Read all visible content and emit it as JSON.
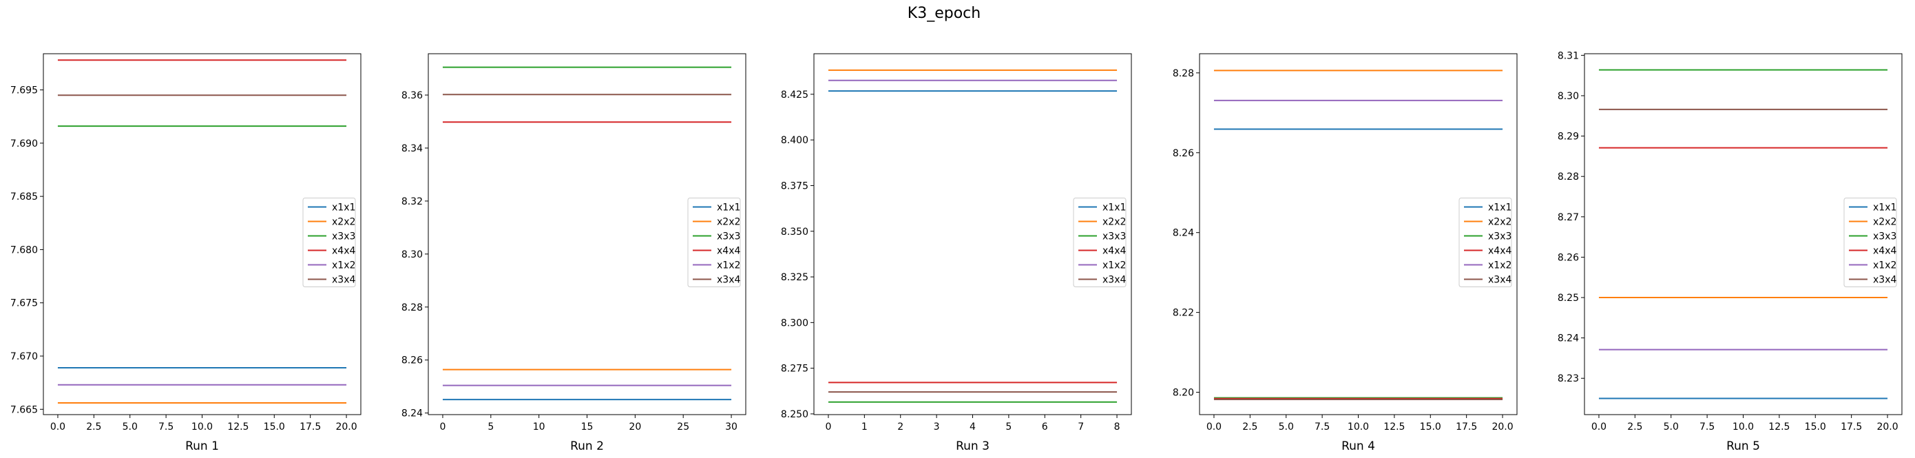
{
  "title": "K3_epoch",
  "colors": {
    "x1x1": "#1f77b4",
    "x2x2": "#ff7f0e",
    "x3x3": "#2ca02c",
    "x4x4": "#d62728",
    "x1x2": "#9467bd",
    "x3x4": "#8c564b"
  },
  "chart_data": [
    {
      "type": "line",
      "xlabel": "Run 1",
      "xlim": [
        -1,
        21
      ],
      "ylim": [
        7.6645,
        7.6984
      ],
      "xticks": [
        0,
        2.5,
        5,
        7.5,
        10,
        12.5,
        15,
        17.5,
        20
      ],
      "xtick_labels": [
        "0.0",
        "2.5",
        "5.0",
        "7.5",
        "10.0",
        "12.5",
        "15.0",
        "17.5",
        "20.0"
      ],
      "yticks": [
        7.665,
        7.67,
        7.675,
        7.68,
        7.685,
        7.69,
        7.695
      ],
      "ytick_labels": [
        "7.665",
        "7.670",
        "7.675",
        "7.680",
        "7.685",
        "7.690",
        "7.695"
      ],
      "legend": "center-right",
      "x": [
        0,
        20
      ],
      "series": [
        {
          "name": "x1x1",
          "values": [
            7.6689,
            7.6689
          ]
        },
        {
          "name": "x2x2",
          "values": [
            7.6656,
            7.6656
          ]
        },
        {
          "name": "x3x3",
          "values": [
            7.6916,
            7.6916
          ]
        },
        {
          "name": "x4x4",
          "values": [
            7.6978,
            7.6978
          ]
        },
        {
          "name": "x1x2",
          "values": [
            7.6673,
            7.6673
          ]
        },
        {
          "name": "x3x4",
          "values": [
            7.6945,
            7.6945
          ]
        }
      ]
    },
    {
      "type": "line",
      "xlabel": "Run 2",
      "xlim": [
        -1.5,
        31.5
      ],
      "ylim": [
        8.2394,
        8.3756
      ],
      "xticks": [
        0,
        5,
        10,
        15,
        20,
        25,
        30
      ],
      "xtick_labels": [
        "0",
        "5",
        "10",
        "15",
        "20",
        "25",
        "30"
      ],
      "yticks": [
        8.24,
        8.26,
        8.28,
        8.3,
        8.32,
        8.34,
        8.36
      ],
      "ytick_labels": [
        "8.24",
        "8.26",
        "8.28",
        "8.30",
        "8.32",
        "8.34",
        "8.36"
      ],
      "legend": "center-right",
      "x": [
        0,
        30
      ],
      "series": [
        {
          "name": "x1x1",
          "values": [
            8.2451,
            8.2451
          ]
        },
        {
          "name": "x2x2",
          "values": [
            8.2564,
            8.2564
          ]
        },
        {
          "name": "x3x3",
          "values": [
            8.3705,
            8.3705
          ]
        },
        {
          "name": "x4x4",
          "values": [
            8.3498,
            8.3498
          ]
        },
        {
          "name": "x1x2",
          "values": [
            8.2504,
            8.2504
          ]
        },
        {
          "name": "x3x4",
          "values": [
            8.3602,
            8.3602
          ]
        }
      ]
    },
    {
      "type": "line",
      "xlabel": "Run 3",
      "xlim": [
        -0.4,
        8.4
      ],
      "ylim": [
        8.2496,
        8.4472
      ],
      "xticks": [
        0,
        1,
        2,
        3,
        4,
        5,
        6,
        7,
        8
      ],
      "xtick_labels": [
        "0",
        "1",
        "2",
        "3",
        "4",
        "5",
        "6",
        "7",
        "8"
      ],
      "yticks": [
        8.25,
        8.275,
        8.3,
        8.325,
        8.35,
        8.375,
        8.4,
        8.425
      ],
      "ytick_labels": [
        "8.250",
        "8.275",
        "8.300",
        "8.325",
        "8.350",
        "8.375",
        "8.400",
        "8.425"
      ],
      "legend": "center-right",
      "x": [
        0,
        8
      ],
      "series": [
        {
          "name": "x1x1",
          "values": [
            8.4268,
            8.4268
          ]
        },
        {
          "name": "x2x2",
          "values": [
            8.4382,
            8.4382
          ]
        },
        {
          "name": "x3x3",
          "values": [
            8.2565,
            8.2565
          ]
        },
        {
          "name": "x4x4",
          "values": [
            8.2672,
            8.2672
          ]
        },
        {
          "name": "x1x2",
          "values": [
            8.4326,
            8.4326
          ]
        },
        {
          "name": "x3x4",
          "values": [
            8.262,
            8.262
          ]
        }
      ]
    },
    {
      "type": "line",
      "xlabel": "Run 4",
      "xlim": [
        -1,
        21
      ],
      "ylim": [
        8.1944,
        8.2848
      ],
      "xticks": [
        0,
        2.5,
        5,
        7.5,
        10,
        12.5,
        15,
        17.5,
        20
      ],
      "xtick_labels": [
        "0.0",
        "2.5",
        "5.0",
        "7.5",
        "10.0",
        "12.5",
        "15.0",
        "17.5",
        "20.0"
      ],
      "yticks": [
        8.2,
        8.22,
        8.24,
        8.26,
        8.28
      ],
      "ytick_labels": [
        "8.20",
        "8.22",
        "8.24",
        "8.26",
        "8.28"
      ],
      "legend": "center-right",
      "x": [
        0,
        20
      ],
      "series": [
        {
          "name": "x1x1",
          "values": [
            8.2659,
            8.2659
          ]
        },
        {
          "name": "x2x2",
          "values": [
            8.2806,
            8.2806
          ]
        },
        {
          "name": "x3x3",
          "values": [
            8.1986,
            8.1986
          ]
        },
        {
          "name": "x4x4",
          "values": [
            8.1984,
            8.1984
          ]
        },
        {
          "name": "x1x2",
          "values": [
            8.2731,
            8.2731
          ]
        },
        {
          "name": "x3x4",
          "values": [
            8.1982,
            8.1982
          ]
        }
      ]
    },
    {
      "type": "line",
      "xlabel": "Run 5",
      "xlim": [
        -1,
        21
      ],
      "ylim": [
        8.221,
        8.3104
      ],
      "xticks": [
        0,
        2.5,
        5,
        7.5,
        10,
        12.5,
        15,
        17.5,
        20
      ],
      "xtick_labels": [
        "0.0",
        "2.5",
        "5.0",
        "7.5",
        "10.0",
        "12.5",
        "15.0",
        "17.5",
        "20.0"
      ],
      "yticks": [
        8.23,
        8.24,
        8.25,
        8.26,
        8.27,
        8.28,
        8.29,
        8.3,
        8.31
      ],
      "ytick_labels": [
        "8.23",
        "8.24",
        "8.25",
        "8.26",
        "8.27",
        "8.28",
        "8.29",
        "8.30",
        "8.31"
      ],
      "legend": "center-right",
      "x": [
        0,
        20
      ],
      "series": [
        {
          "name": "x1x1",
          "values": [
            8.225,
            8.225
          ]
        },
        {
          "name": "x2x2",
          "values": [
            8.25,
            8.25
          ]
        },
        {
          "name": "x3x3",
          "values": [
            8.3064,
            8.3064
          ]
        },
        {
          "name": "x4x4",
          "values": [
            8.2871,
            8.2871
          ]
        },
        {
          "name": "x1x2",
          "values": [
            8.2371,
            8.2371
          ]
        },
        {
          "name": "x3x4",
          "values": [
            8.2966,
            8.2966
          ]
        }
      ]
    }
  ]
}
